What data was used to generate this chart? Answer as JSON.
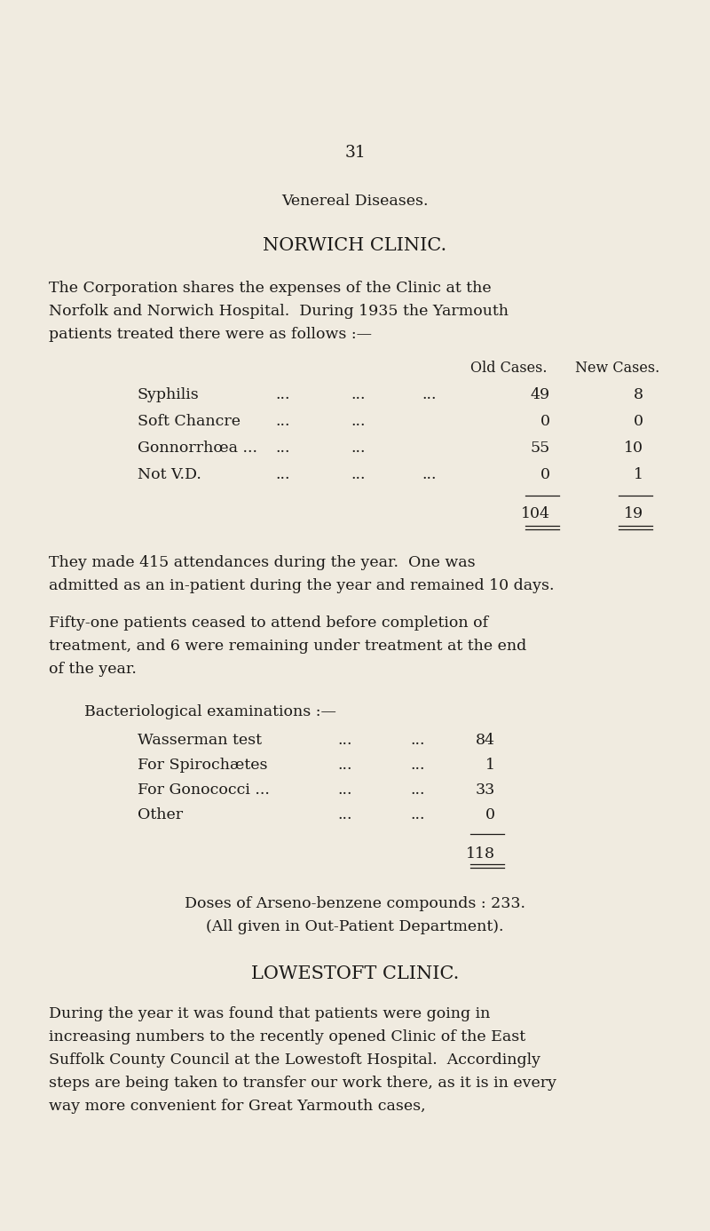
{
  "bg_color": "#f0ebe0",
  "text_color": "#1c1a18",
  "page_number": "31",
  "title1": "Venereal Diseases.",
  "title2": "NORWICH CLINIC.",
  "para1_lines": [
    "The Corporation shares the expenses of the Clinic at the",
    "Norfolk and Norwich Hospital.  During 1935 the Yarmouth",
    "patients treated there were as follows :—"
  ],
  "col_header1": "Old Cases.",
  "col_header2": "New Cases.",
  "table_rows": [
    {
      "label": "Syphilis",
      "dots": [
        "...",
        "...",
        "..."
      ],
      "old": "49",
      "new": "8"
    },
    {
      "label": "Soft Chancre",
      "dots": [
        "...",
        "..."
      ],
      "old": "0",
      "new": "0"
    },
    {
      "label": "Gonnorrhœa ...",
      "dots": [
        "...",
        "..."
      ],
      "old": "55",
      "new": "10"
    },
    {
      "label": "Not V.D.",
      "dots": [
        "...",
        "...",
        "..."
      ],
      "old": "0",
      "new": "1"
    }
  ],
  "total_old": "104",
  "total_new": "19",
  "para2_lines": [
    "They made 415 attendances during the year.  One was",
    "admitted as an in-patient during the year and remained 10 days."
  ],
  "para3_lines": [
    "Fifty-one patients ceased to attend before completion of",
    "treatment, and 6 were remaining under treatment at the end",
    "of the year."
  ],
  "bact_header": "Bacteriological examinations :—",
  "bact_rows": [
    {
      "label": "Wasserman test",
      "dots": [
        "...",
        "..."
      ],
      "val": "84"
    },
    {
      "label": "For Spirochætes",
      "dots": [
        "...",
        "..."
      ],
      "val": "1"
    },
    {
      "label": "For Gonococci ...",
      "dots": [
        "...",
        "..."
      ],
      "val": "33"
    },
    {
      "label": "Other",
      "dots": [
        "...",
        "..."
      ],
      "val": "0"
    }
  ],
  "bact_total": "118",
  "doses1": "Doses of Arseno-benzene compounds : 233.",
  "doses2": "(All given in Out-Patient Department).",
  "title3": "LOWESTOFT CLINIC.",
  "para4_lines": [
    "During the year it was found that patients were going in",
    "increasing numbers to the recently opened Clinic of the East",
    "Suffolk County Council at the Lowestoft Hospital.  Accordingly",
    "steps are being taken to transfer our work there, as it is in every",
    "way more convenient for Great Yarmouth cases,"
  ]
}
